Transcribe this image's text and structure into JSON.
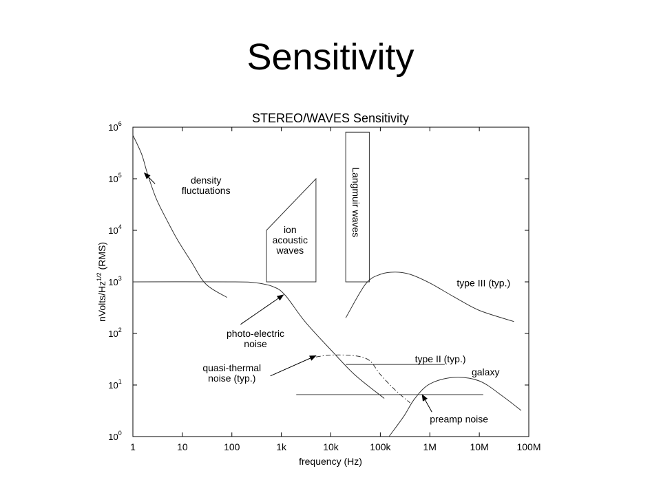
{
  "slide": {
    "title": "Sensitivity"
  },
  "chart_data": {
    "type": "line",
    "title": "STEREO/WAVES Sensitivity",
    "xlabel": "frequency (Hz)",
    "ylabel_main": "nVolts/Hz",
    "ylabel_sup": "1/2",
    "ylabel_tail": " (RMS)",
    "x_scale": "log",
    "y_scale": "log",
    "xlim": [
      1,
      100000000
    ],
    "ylim": [
      1,
      1000000
    ],
    "grid": false,
    "x_ticks": [
      {
        "value": 1,
        "label": "1"
      },
      {
        "value": 10,
        "label": "10"
      },
      {
        "value": 100,
        "label": "100"
      },
      {
        "value": 1000,
        "label": "1k"
      },
      {
        "value": 10000,
        "label": "10k"
      },
      {
        "value": 100000,
        "label": "100k"
      },
      {
        "value": 1000000,
        "label": "1M"
      },
      {
        "value": 10000000,
        "label": "10M"
      },
      {
        "value": 100000000,
        "label": "100M"
      }
    ],
    "y_ticks": [
      {
        "value": 1,
        "base": "10",
        "exp": "0"
      },
      {
        "value": 10,
        "base": "10",
        "exp": "1"
      },
      {
        "value": 100,
        "base": "10",
        "exp": "2"
      },
      {
        "value": 1000,
        "base": "10",
        "exp": "3"
      },
      {
        "value": 10000,
        "base": "10",
        "exp": "4"
      },
      {
        "value": 100000,
        "base": "10",
        "exp": "5"
      },
      {
        "value": 1000000,
        "base": "10",
        "exp": "6"
      }
    ],
    "series": [
      {
        "id": "density",
        "style": "solid",
        "x": [
          1,
          1.5,
          2,
          3,
          5,
          8,
          15,
          30,
          80
        ],
        "y": [
          700000,
          300000,
          120000,
          40000,
          15000,
          6500,
          2500,
          900,
          500
        ]
      },
      {
        "id": "photo",
        "style": "solid",
        "x": [
          1,
          100,
          300,
          700,
          1200,
          3000,
          10000,
          30000,
          120000
        ],
        "y": [
          1000,
          1000,
          960,
          800,
          550,
          170,
          48,
          16,
          5.5
        ]
      },
      {
        "id": "quasi",
        "style": "dashdot",
        "x": [
          5000,
          10000,
          30000,
          60000,
          100000,
          200000,
          400000
        ],
        "y": [
          35,
          38,
          37,
          30,
          16,
          8,
          4.5
        ]
      },
      {
        "id": "type3",
        "style": "solid",
        "x": [
          20000,
          50000,
          100000,
          200000,
          400000,
          1000000,
          3000000,
          10000000,
          50000000
        ],
        "y": [
          200,
          900,
          1400,
          1550,
          1400,
          950,
          520,
          280,
          170
        ]
      },
      {
        "id": "type2",
        "style": "solid",
        "x": [
          20000,
          2000000
        ],
        "y": [
          25,
          25
        ]
      },
      {
        "id": "preamp",
        "style": "solid",
        "x": [
          2000,
          12000000
        ],
        "y": [
          6.5,
          6.5
        ]
      },
      {
        "id": "galaxy",
        "style": "solid",
        "x": [
          150000,
          300000,
          500000,
          1000000,
          3000000,
          10000000,
          30000000,
          70000000
        ],
        "y": [
          1,
          2.5,
          5.5,
          10.5,
          14,
          12,
          6,
          3.2
        ]
      }
    ],
    "regions": [
      {
        "id": "ion",
        "x": [
          500,
          500,
          5000,
          5000,
          500
        ],
        "y": [
          1000,
          10000,
          100000,
          1000,
          1000
        ]
      },
      {
        "id": "langmuir",
        "x": [
          20000,
          20000,
          60000,
          60000,
          20000
        ],
        "y": [
          1000,
          800000,
          800000,
          1000,
          1000
        ]
      }
    ],
    "annotations": [
      {
        "id": "density",
        "lines": [
          "density",
          "fluctuations"
        ],
        "anchor": "middle",
        "lx": 30,
        "ly": 75000,
        "ax": 2.8,
        "ay": 80000,
        "tx": 1.7,
        "ty": 130000
      },
      {
        "id": "photo",
        "lines": [
          "photo-electric",
          "noise"
        ],
        "anchor": "middle",
        "lx": 300,
        "ly": 80,
        "ax": 150,
        "ay": 150,
        "tx": 1100,
        "ty": 560
      },
      {
        "id": "quasi",
        "lines": [
          "quasi-thermal",
          "noise (typ.)"
        ],
        "anchor": "middle",
        "lx": 100,
        "ly": 17,
        "ax": 600,
        "ay": 15,
        "tx": 5000,
        "ty": 37
      },
      {
        "id": "ion",
        "lines": [
          "ion",
          "acoustic",
          "waves"
        ],
        "anchor": "middle",
        "lx": 1500,
        "ly": 6500
      },
      {
        "id": "langmuir",
        "lines": [
          "Langmuir waves"
        ],
        "anchor": "middle",
        "lx": 32000,
        "ly": 35000,
        "rotate": 90
      },
      {
        "id": "type3",
        "lines": [
          "type III (typ.)"
        ],
        "anchor": "start",
        "lx": 3500000,
        "ly": 950
      },
      {
        "id": "type2",
        "lines": [
          "type II (typ.)"
        ],
        "anchor": "start",
        "lx": 500000,
        "ly": 32
      },
      {
        "id": "galaxy",
        "lines": [
          "galaxy"
        ],
        "anchor": "start",
        "lx": 7000000,
        "ly": 18
      },
      {
        "id": "preamp",
        "lines": [
          "preamp noise"
        ],
        "anchor": "start",
        "lx": 1000000,
        "ly": 2.2,
        "ax": 1100000,
        "ay": 3,
        "tx": 700000,
        "ty": 6.5
      }
    ]
  }
}
